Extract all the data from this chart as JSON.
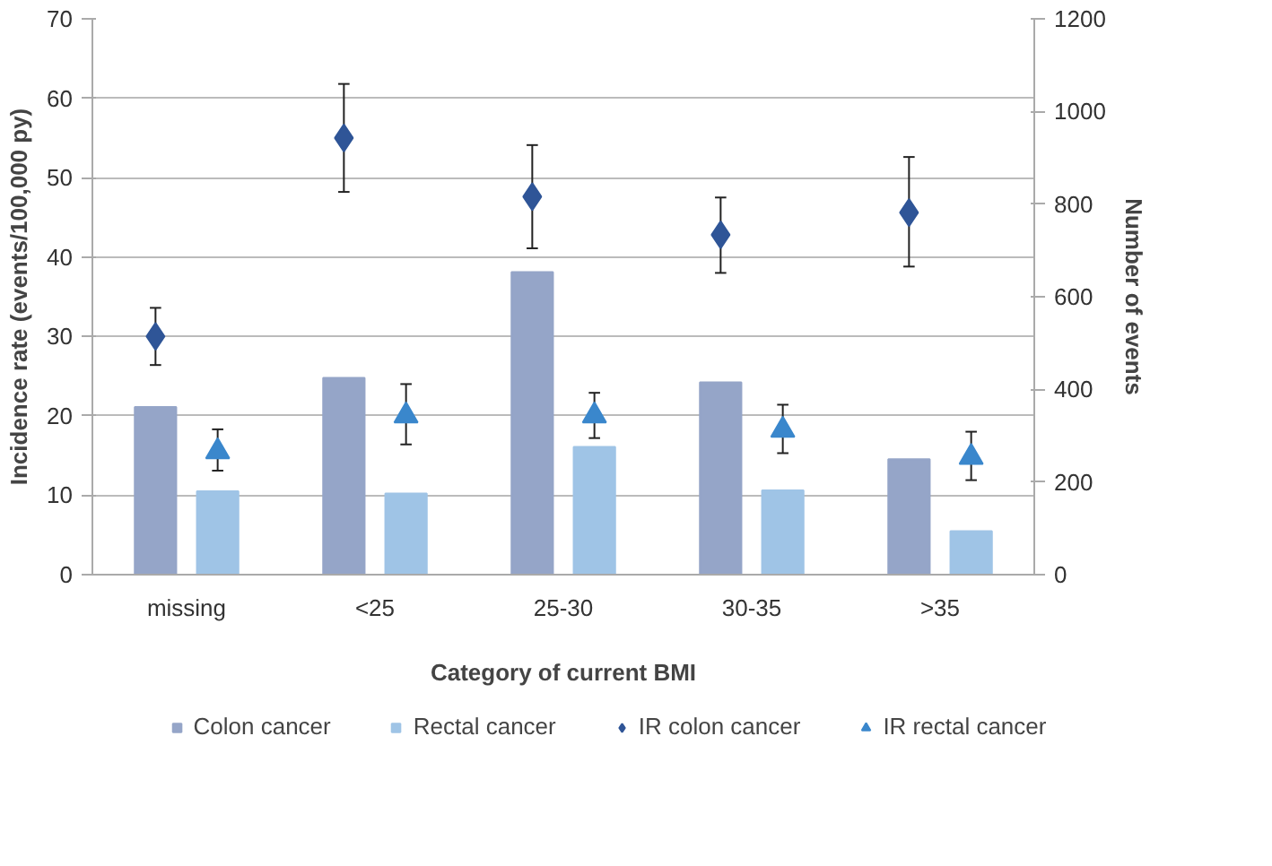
{
  "chart_data": {
    "type": "bar",
    "xlabel": "Category of current BMI",
    "ylabel": "Incidence rate (events/100,000 py)",
    "y2label": "Number of events",
    "categories": [
      "missing",
      "<25",
      "25-30",
      "30-35",
      ">35"
    ],
    "ylim": [
      0,
      70
    ],
    "yticks": [
      0,
      10,
      20,
      30,
      40,
      50,
      60,
      70
    ],
    "y2lim": [
      0,
      1200
    ],
    "y2ticks": [
      0,
      200,
      400,
      600,
      800,
      1000,
      1200
    ],
    "grid": "y",
    "legend": "bottom",
    "series": [
      {
        "name": "Colon cancer",
        "axis": "y2",
        "color": "#95a5c8",
        "values": [
          362,
          425,
          653,
          415,
          249
        ]
      },
      {
        "name": "Rectal cancer",
        "axis": "y2",
        "color": "#9fc4e6",
        "values": [
          180,
          175,
          276,
          182,
          94
        ]
      },
      {
        "name": "IR colon cancer",
        "type": "scatter",
        "marker": "diamond",
        "color": "#2f5597",
        "values": [
          30.0,
          55.0,
          47.6,
          42.8,
          45.6
        ],
        "errors": [
          [
            26.4,
            33.6
          ],
          [
            48.2,
            61.8
          ],
          [
            41.1,
            54.1
          ],
          [
            38.0,
            47.5
          ],
          [
            38.8,
            52.6
          ]
        ]
      },
      {
        "name": "IR rectal cancer",
        "type": "scatter",
        "marker": "triangle",
        "color": "#3a87cc",
        "values": [
          15.5,
          20.0,
          20.0,
          18.2,
          14.8
        ],
        "errors": [
          [
            13.1,
            18.3
          ],
          [
            16.4,
            24.0
          ],
          [
            17.2,
            22.9
          ],
          [
            15.3,
            21.4
          ],
          [
            11.9,
            18.0
          ]
        ]
      }
    ]
  }
}
